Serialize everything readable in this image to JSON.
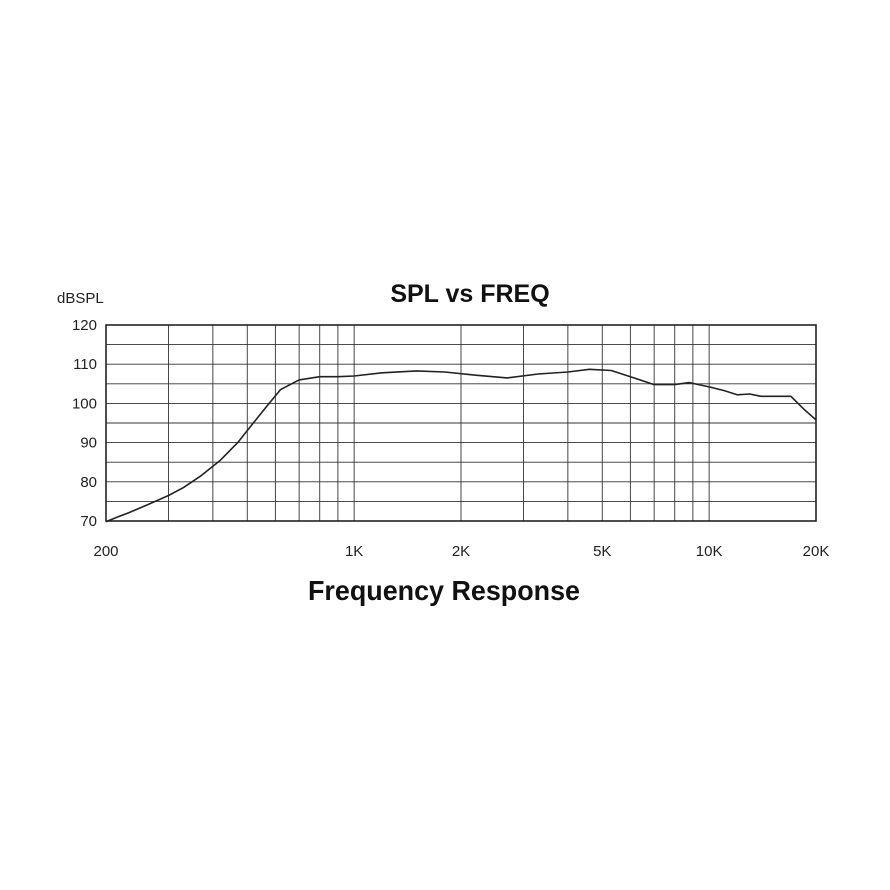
{
  "chart_data": {
    "type": "line",
    "title": "SPL vs FREQ",
    "xlabel": "Frequency Response",
    "ylabel": "dBSPL",
    "x_scale": "log",
    "xlim": [
      200,
      20000
    ],
    "ylim": [
      70,
      120
    ],
    "x_ticks": [
      {
        "value": 200,
        "label": "200"
      },
      {
        "value": 1000,
        "label": "1K"
      },
      {
        "value": 2000,
        "label": "2K"
      },
      {
        "value": 5000,
        "label": "5K"
      },
      {
        "value": 10000,
        "label": "10K"
      },
      {
        "value": 20000,
        "label": "20K"
      }
    ],
    "y_ticks": [
      {
        "value": 120,
        "label": "120"
      },
      {
        "value": 110,
        "label": "110"
      },
      {
        "value": 100,
        "label": "100"
      },
      {
        "value": 90,
        "label": "90"
      },
      {
        "value": 80,
        "label": "80"
      },
      {
        "value": 70,
        "label": "70"
      }
    ],
    "grid": true,
    "x_grid_lines": [
      200,
      300,
      400,
      500,
      600,
      700,
      800,
      900,
      1000,
      2000,
      3000,
      4000,
      5000,
      6000,
      7000,
      8000,
      9000,
      10000,
      20000
    ],
    "series": [
      {
        "x": [
          200,
          215,
          230,
          260,
          300,
          330,
          370,
          420,
          470,
          520,
          570,
          620,
          700,
          800,
          900,
          1000,
          1200,
          1500,
          1800,
          2200,
          2700,
          3300,
          4000,
          4600,
          5300,
          6000,
          7000,
          8000,
          8800,
          10000,
          11000,
          12000,
          13000,
          14000,
          17000,
          18500,
          20000
        ],
        "y": [
          69.8,
          71,
          72,
          74,
          76.5,
          78.5,
          81.5,
          85.5,
          90,
          95,
          99.5,
          103.5,
          106,
          106.8,
          106.8,
          107,
          107.8,
          108.3,
          108,
          107.2,
          106.5,
          107.5,
          108,
          108.7,
          108.4,
          106.8,
          104.8,
          104.8,
          105.3,
          104.2,
          103.3,
          102.2,
          102.4,
          101.8,
          101.8,
          98.5,
          95.8
        ]
      }
    ]
  }
}
